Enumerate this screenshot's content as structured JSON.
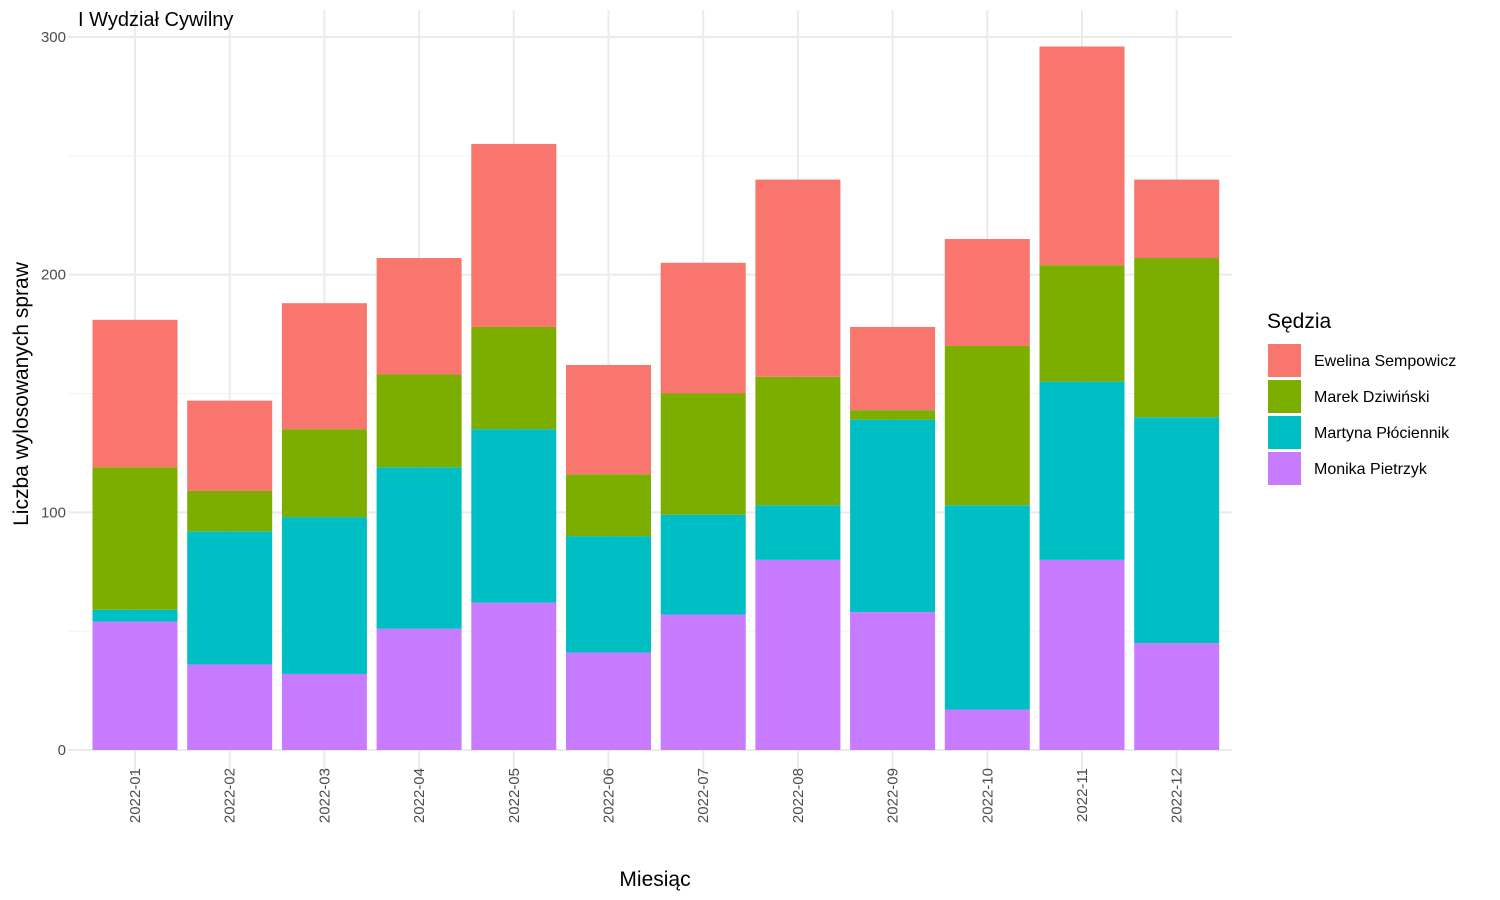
{
  "chart_data": {
    "type": "bar",
    "stacked": true,
    "title": "I Wydział Cywilny",
    "xlabel": "Miesiąc",
    "ylabel": "Liczba wylosowanych spraw",
    "ylim": [
      0,
      300
    ],
    "yticks": [
      0,
      100,
      200,
      300
    ],
    "grid": true,
    "legend_title": "Sędzia",
    "legend_position": "right",
    "categories": [
      "2022-01",
      "2022-02",
      "2022-03",
      "2022-04",
      "2022-05",
      "2022-06",
      "2022-07",
      "2022-08",
      "2022-09",
      "2022-10",
      "2022-11",
      "2022-12"
    ],
    "series": [
      {
        "name": "Ewelina Sempowicz",
        "color": "#F8766D",
        "values": [
          62,
          38,
          53,
          49,
          77,
          46,
          55,
          83,
          35,
          45,
          92,
          33
        ]
      },
      {
        "name": "Marek Dziwiński",
        "color": "#7CAE00",
        "values": [
          60,
          17,
          37,
          39,
          43,
          26,
          51,
          54,
          4,
          67,
          49,
          67
        ]
      },
      {
        "name": "Martyna Płóciennik",
        "color": "#00BFC4",
        "values": [
          5,
          56,
          66,
          68,
          73,
          49,
          42,
          23,
          81,
          86,
          75,
          95
        ]
      },
      {
        "name": "Monika Pietrzyk",
        "color": "#C77CFF",
        "values": [
          54,
          36,
          32,
          51,
          62,
          41,
          57,
          80,
          58,
          17,
          80,
          45
        ]
      }
    ]
  }
}
